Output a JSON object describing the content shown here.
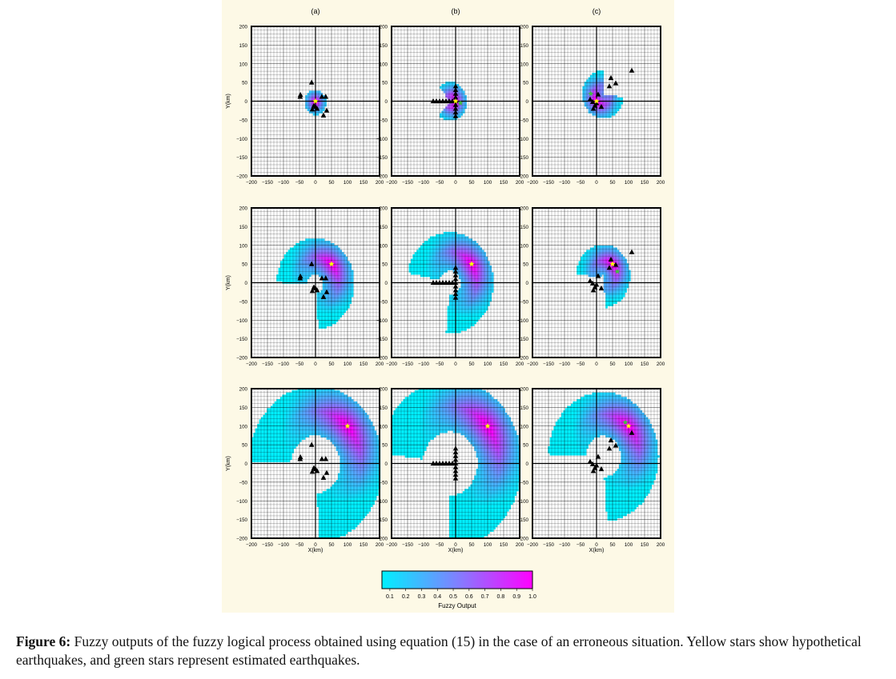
{
  "figure": {
    "column_labels": [
      "(a)",
      "(b)",
      "(c)"
    ],
    "ylabel": "Y(km)",
    "xlabel": "X(km)",
    "axis_ticks": [
      "−200",
      "−150",
      "−100",
      "−50",
      "0",
      "50",
      "100",
      "150",
      "200"
    ],
    "axis_range_km": [
      -200,
      200
    ],
    "colors": {
      "low": "#00f0ff",
      "mid": "#8080ff",
      "high": "#ff00ff",
      "star_hypothetical": "#ffff00",
      "star_estimated": "#40c040",
      "station": "#000000"
    },
    "colorbar": {
      "label": "Fuzzy Output",
      "ticks": [
        "0.1",
        "0.2",
        "0.3",
        "0.4",
        "0.5",
        "0.6",
        "0.7",
        "0.8",
        "0.9",
        "1.0"
      ],
      "range": [
        0.05,
        1.0
      ]
    }
  },
  "chart_data": {
    "type": "heatmap",
    "station_layouts_km": {
      "a": [
        [
          -48,
          12
        ],
        [
          -47,
          17
        ],
        [
          -12,
          50
        ],
        [
          -10,
          -22
        ],
        [
          -5,
          -12
        ],
        [
          0,
          -15
        ],
        [
          5,
          -20
        ],
        [
          20,
          12
        ],
        [
          25,
          -38
        ],
        [
          32,
          12
        ],
        [
          35,
          -25
        ]
      ],
      "b": [
        [
          -70,
          0
        ],
        [
          -60,
          0
        ],
        [
          -50,
          0
        ],
        [
          -40,
          0
        ],
        [
          -30,
          0
        ],
        [
          -20,
          0
        ],
        [
          -10,
          0
        ],
        [
          0,
          40
        ],
        [
          0,
          30
        ],
        [
          0,
          20
        ],
        [
          0,
          10
        ],
        [
          0,
          0
        ],
        [
          0,
          -10
        ],
        [
          0,
          -20
        ],
        [
          0,
          -30
        ],
        [
          0,
          -40
        ]
      ],
      "c": [
        [
          -20,
          5
        ],
        [
          -12,
          -2
        ],
        [
          -10,
          -20
        ],
        [
          -5,
          -12
        ],
        [
          0,
          -5
        ],
        [
          5,
          18
        ],
        [
          15,
          -15
        ],
        [
          40,
          40
        ],
        [
          45,
          62
        ],
        [
          60,
          48
        ],
        [
          110,
          82
        ]
      ]
    },
    "panels": [
      {
        "row": 1,
        "col": "a",
        "hypothetical_km": [
          0,
          0
        ],
        "estimated_km": [
          0,
          0
        ]
      },
      {
        "row": 1,
        "col": "b",
        "hypothetical_km": [
          0,
          0
        ],
        "estimated_km": [
          15,
          -5
        ]
      },
      {
        "row": 1,
        "col": "c",
        "hypothetical_km": [
          0,
          0
        ],
        "estimated_km": [
          -18,
          20
        ]
      },
      {
        "row": 2,
        "col": "a",
        "hypothetical_km": [
          50,
          50
        ],
        "estimated_km": [
          50,
          50
        ]
      },
      {
        "row": 2,
        "col": "b",
        "hypothetical_km": [
          50,
          50
        ],
        "estimated_km": [
          50,
          50
        ]
      },
      {
        "row": 2,
        "col": "c",
        "hypothetical_km": [
          50,
          50
        ],
        "estimated_km": [
          65,
          30
        ]
      },
      {
        "row": 3,
        "col": "a",
        "hypothetical_km": [
          100,
          100
        ],
        "estimated_km": [
          100,
          100
        ]
      },
      {
        "row": 3,
        "col": "b",
        "hypothetical_km": [
          100,
          100
        ],
        "estimated_km": [
          100,
          100
        ]
      },
      {
        "row": 3,
        "col": "c",
        "hypothetical_km": [
          100,
          100
        ],
        "estimated_km": [
          90,
          110
        ]
      }
    ]
  },
  "caption": {
    "label": "Figure 6:",
    "text": "Fuzzy outputs of the fuzzy logical process obtained using equation (15) in the case of an erroneous situation. Yellow stars show hypothetical earthquakes, and green stars represent estimated earthquakes."
  }
}
